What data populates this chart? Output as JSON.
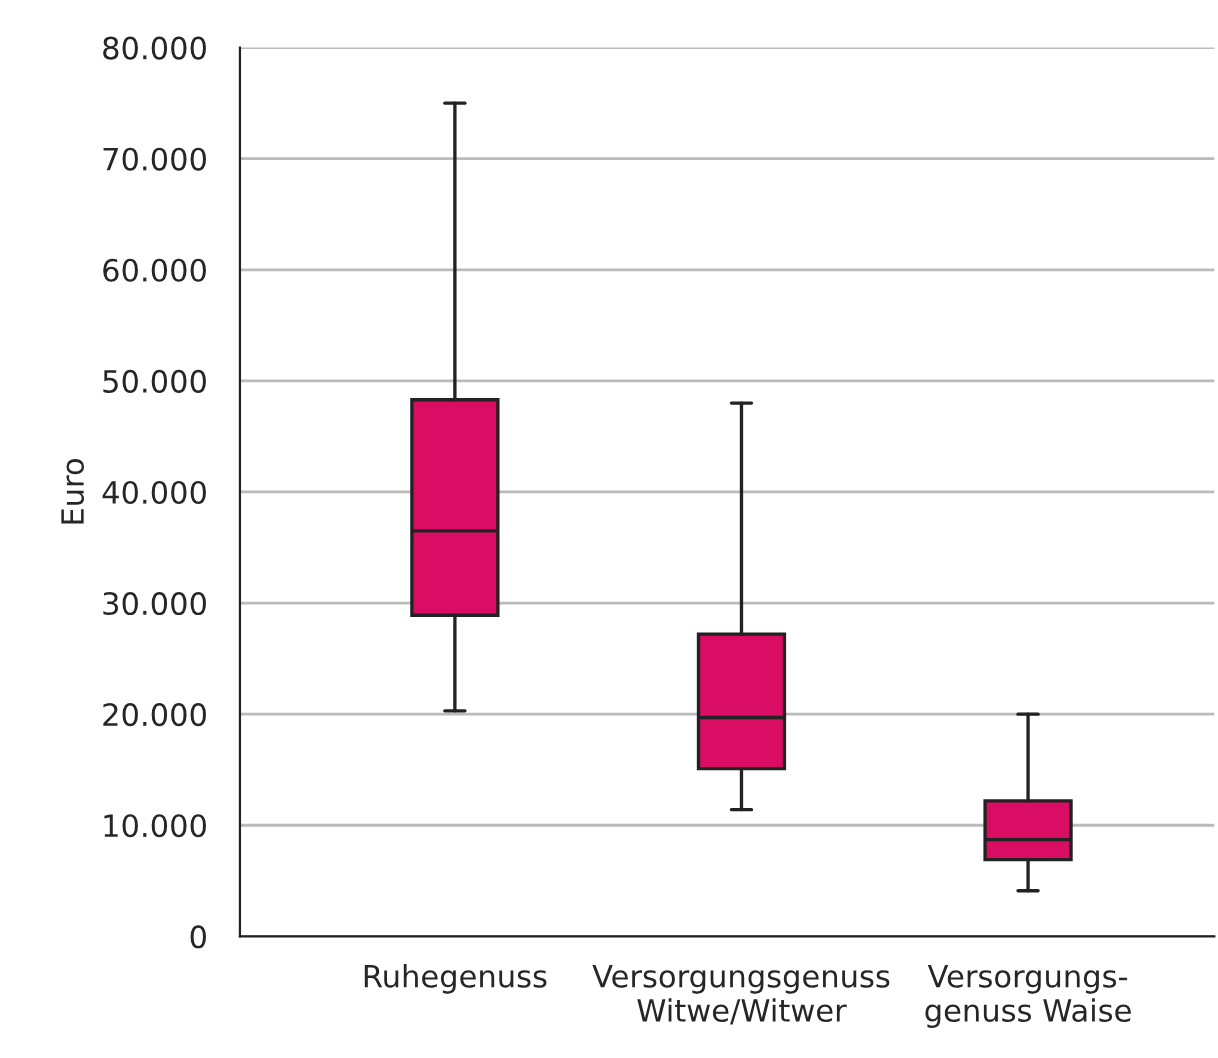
{
  "chart_data": {
    "type": "box",
    "ylabel": "Euro",
    "categories": [
      "Ruhegenuss",
      "Versorgungsgenuss\nWitwe/Witwer",
      "Versorgungs-\ngenuss Waise"
    ],
    "boxes": [
      {
        "low": 20300,
        "q1": 28900,
        "median": 36500,
        "q3": 48300,
        "high": 75000
      },
      {
        "low": 11400,
        "q1": 15100,
        "median": 19700,
        "q3": 27200,
        "high": 48000
      },
      {
        "low": 4100,
        "q1": 6900,
        "median": 8700,
        "q3": 12200,
        "high": 20000
      }
    ],
    "color": "#d90d63",
    "ylim": [
      0,
      80000
    ],
    "yticks": [
      {
        "value": 0,
        "label": "0"
      },
      {
        "value": 10000,
        "label": "10.000"
      },
      {
        "value": 20000,
        "label": "20.000"
      },
      {
        "value": 30000,
        "label": "30.000"
      },
      {
        "value": 40000,
        "label": "40.000"
      },
      {
        "value": 50000,
        "label": "50.000"
      },
      {
        "value": 60000,
        "label": "60.000"
      },
      {
        "value": 70000,
        "label": "70.000"
      },
      {
        "value": 80000,
        "label": "80.000"
      }
    ],
    "grid": "y"
  }
}
